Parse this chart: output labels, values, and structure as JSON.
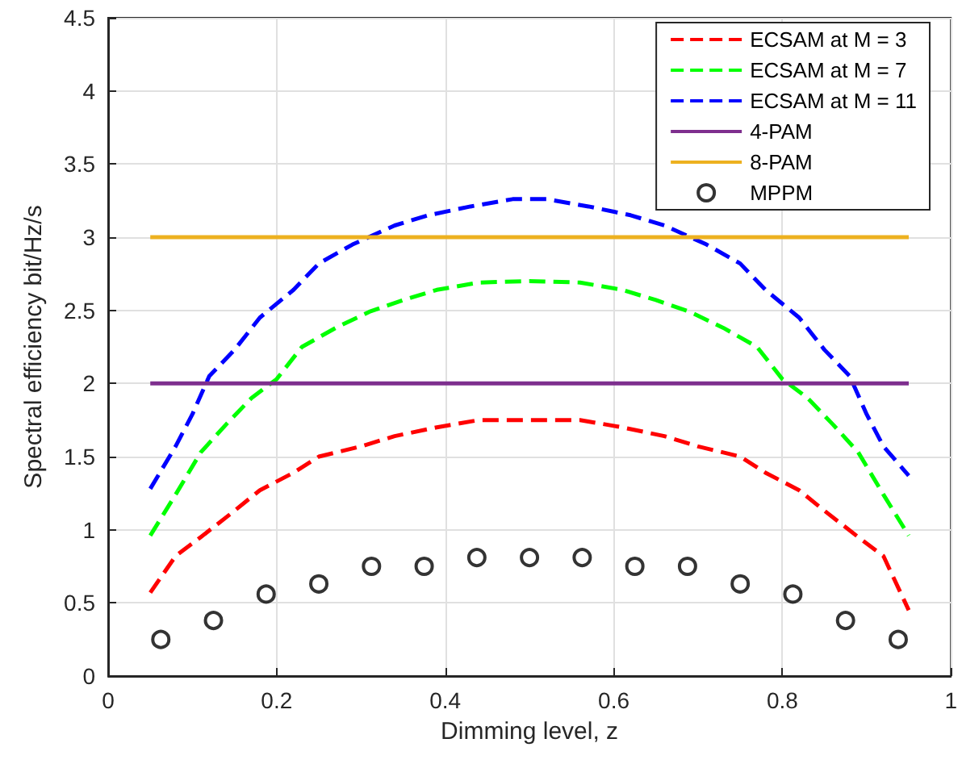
{
  "chart_data": {
    "type": "line",
    "xlabel": "Dimming level, z",
    "ylabel": "Spectral efficiency bit/Hz/s",
    "xlim": [
      0,
      1
    ],
    "xticks": [
      0,
      0.2,
      0.4,
      0.6,
      0.8,
      1
    ],
    "ylim": [
      0,
      4.5
    ],
    "yticks": [
      0,
      0.5,
      1,
      1.5,
      2,
      2.5,
      3,
      3.5,
      4,
      4.5
    ],
    "grid": true,
    "legend": "top right",
    "series": [
      {
        "name": "ECSAM at M = 3",
        "color": "#ff0000",
        "line_style": "dashed",
        "marker": "none",
        "x": [
          0.05,
          0.08,
          0.11,
          0.15,
          0.18,
          0.22,
          0.25,
          0.3,
          0.34,
          0.39,
          0.44,
          0.5,
          0.56,
          0.61,
          0.66,
          0.7,
          0.75,
          0.78,
          0.82,
          0.85,
          0.89,
          0.92,
          0.95
        ],
        "values": [
          0.57,
          0.82,
          0.95,
          1.13,
          1.27,
          1.39,
          1.5,
          1.57,
          1.64,
          1.7,
          1.75,
          1.75,
          1.75,
          1.7,
          1.64,
          1.57,
          1.5,
          1.39,
          1.27,
          1.13,
          0.95,
          0.82,
          0.45
        ]
      },
      {
        "name": "ECSAM at M = 7",
        "color": "#00ff00",
        "line_style": "dashed",
        "marker": "none",
        "x": [
          0.05,
          0.08,
          0.11,
          0.14,
          0.17,
          0.2,
          0.23,
          0.27,
          0.31,
          0.35,
          0.39,
          0.44,
          0.5,
          0.56,
          0.61,
          0.65,
          0.69,
          0.73,
          0.77,
          0.8,
          0.83,
          0.86,
          0.89,
          0.92,
          0.95
        ],
        "values": [
          0.96,
          1.24,
          1.53,
          1.72,
          1.9,
          2.03,
          2.25,
          2.38,
          2.49,
          2.57,
          2.64,
          2.69,
          2.7,
          2.69,
          2.64,
          2.57,
          2.49,
          2.38,
          2.25,
          2.03,
          1.9,
          1.72,
          1.53,
          1.24,
          0.96
        ]
      },
      {
        "name": "ECSAM at M = 11",
        "color": "#0000ff",
        "line_style": "dashed",
        "marker": "none",
        "x": [
          0.05,
          0.08,
          0.1,
          0.12,
          0.15,
          0.18,
          0.22,
          0.25,
          0.29,
          0.34,
          0.38,
          0.43,
          0.48,
          0.52,
          0.57,
          0.62,
          0.66,
          0.71,
          0.75,
          0.78,
          0.82,
          0.85,
          0.88,
          0.9,
          0.92,
          0.95
        ],
        "values": [
          1.28,
          1.57,
          1.79,
          2.05,
          2.23,
          2.45,
          2.64,
          2.82,
          2.95,
          3.08,
          3.15,
          3.21,
          3.26,
          3.26,
          3.21,
          3.15,
          3.08,
          2.95,
          2.82,
          2.64,
          2.45,
          2.23,
          2.05,
          1.79,
          1.57,
          1.37
        ]
      },
      {
        "name": "4-PAM",
        "color": "#7e2f8e",
        "line_style": "solid",
        "marker": "none",
        "x": [
          0.05,
          0.95
        ],
        "values": [
          2,
          2
        ]
      },
      {
        "name": "8-PAM",
        "color": "#edb120",
        "line_style": "solid",
        "marker": "none",
        "x": [
          0.05,
          0.95
        ],
        "values": [
          3,
          3
        ]
      },
      {
        "name": "MPPM",
        "type": "scatter",
        "color": "#000000",
        "marker": "circle",
        "x": [
          0.0625,
          0.125,
          0.1875,
          0.25,
          0.3125,
          0.375,
          0.4375,
          0.5,
          0.5625,
          0.625,
          0.6875,
          0.75,
          0.8125,
          0.875,
          0.9375
        ],
        "values": [
          0.25,
          0.38,
          0.56,
          0.63,
          0.75,
          0.75,
          0.81,
          0.81,
          0.81,
          0.75,
          0.75,
          0.63,
          0.56,
          0.38,
          0.25
        ]
      }
    ]
  }
}
